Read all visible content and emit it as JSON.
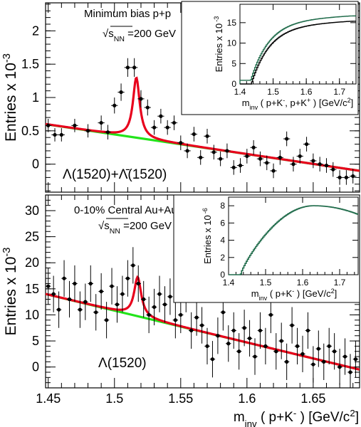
{
  "chart_data": [
    {
      "type": "scatter",
      "panel": "top",
      "annotations": [
        "Minimum bias p+p",
        "√s_NN =200 GeV"
      ],
      "label": "Λ(1520)+Λ̄(1520)",
      "ylabel": "Entries  x 10",
      "ylabel_exp": "-3",
      "xlim": [
        1.448,
        1.685
      ],
      "ylim": [
        -0.42,
        2.42
      ],
      "yticks": [
        0,
        0.5,
        1,
        1.5,
        2
      ],
      "ytick_labels": [
        "0",
        "0.5",
        "1",
        "1.5",
        "2"
      ],
      "points": {
        "x": [
          1.45,
          1.455,
          1.46,
          1.47,
          1.48,
          1.49,
          1.495,
          1.5,
          1.505,
          1.51,
          1.515,
          1.52,
          1.525,
          1.53,
          1.535,
          1.54,
          1.545,
          1.55,
          1.555,
          1.56,
          1.565,
          1.57,
          1.575,
          1.58,
          1.585,
          1.59,
          1.595,
          1.6,
          1.605,
          1.61,
          1.615,
          1.62,
          1.625,
          1.63,
          1.635,
          1.64,
          1.645,
          1.65,
          1.655,
          1.66,
          1.665,
          1.67,
          1.675,
          1.68
        ],
        "y": [
          0.58,
          0.44,
          0.44,
          0.58,
          0.5,
          0.62,
          0.48,
          0.88,
          1.08,
          1.45,
          1.45,
          0.98,
          0.85,
          0.55,
          0.72,
          0.55,
          0.62,
          0.32,
          0.2,
          0.45,
          0.1,
          0.42,
          0.18,
          0.08,
          0.2,
          -0.05,
          -0.02,
          0.12,
          0.25,
          0.08,
          0.02,
          -0.1,
          0.1,
          0.38,
          0.0,
          0.12,
          0.3,
          0.05,
          0.0,
          -0.02,
          -0.08,
          -0.2,
          -0.2,
          -0.18
        ],
        "err": [
          0.1,
          0.1,
          0.1,
          0.1,
          0.1,
          0.11,
          0.11,
          0.12,
          0.13,
          0.14,
          0.14,
          0.13,
          0.12,
          0.11,
          0.11,
          0.11,
          0.11,
          0.11,
          0.11,
          0.11,
          0.11,
          0.11,
          0.11,
          0.11,
          0.11,
          0.11,
          0.11,
          0.11,
          0.11,
          0.11,
          0.11,
          0.11,
          0.11,
          0.11,
          0.11,
          0.11,
          0.11,
          0.11,
          0.11,
          0.11,
          0.11,
          0.11,
          0.11,
          0.11
        ]
      },
      "fit": {
        "mass": 1.5165,
        "width": 0.0062,
        "amplitude": 0.9,
        "background_at_xmin": 0.6,
        "background_at_xmax": -0.1
      },
      "background_line": {
        "x": [
          1.448,
          1.685
        ],
        "y": [
          0.6,
          -0.1
        ]
      },
      "colors": {
        "fit": "#e8001c",
        "background": "#22e41a",
        "points": "#000000"
      },
      "inset": {
        "type": "line",
        "ylabel": "Entries  x 10",
        "ylabel_exp": "-3",
        "xlabel": "m_inv ( p+K⁻,  p+K⁺ )  [GeV/c²]",
        "xlabel_parts": [
          "m",
          "inv",
          " ( p+K",
          "-",
          ",  p+K",
          "+",
          " )  [GeV/c",
          "2",
          "]"
        ],
        "xlim": [
          1.4,
          1.75
        ],
        "ylim": [
          0,
          19.5
        ],
        "xticks": [
          1.4,
          1.5,
          1.6,
          1.7
        ],
        "xtick_labels": [
          "1.4",
          "1.5",
          "1.6",
          "1.7"
        ],
        "yticks": [
          0,
          5,
          10,
          15
        ],
        "ytick_labels": [
          "0",
          "5",
          "10",
          "15"
        ],
        "threshold": 1.433,
        "plateau": 15.8,
        "colors": {
          "line": "#000000",
          "line2": "#1f6b4a"
        }
      }
    },
    {
      "type": "scatter",
      "panel": "bottom",
      "annotations": [
        "0-10% Central Au+Au",
        "√s_NN =200 GeV"
      ],
      "label": "Λ(1520)",
      "ylabel": "Entries  x 10",
      "ylabel_exp": "-3",
      "xlabel_parts": [
        "m",
        "inv",
        " ( p+K",
        "-",
        " )  [GeV/c",
        "2",
        "]"
      ],
      "xlim": [
        1.448,
        1.685
      ],
      "ylim": [
        -4,
        33
      ],
      "xticks": [
        1.45,
        1.5,
        1.55,
        1.6,
        1.65
      ],
      "xtick_labels": [
        "1.45",
        "1.5",
        "1.55",
        "1.6",
        "1.65"
      ],
      "yticks": [
        0,
        5,
        10,
        15,
        20,
        25,
        30
      ],
      "ytick_labels": [
        "0",
        "5",
        "10",
        "15",
        "20",
        "25",
        "30"
      ],
      "points": {
        "x": [
          1.45,
          1.454,
          1.458,
          1.462,
          1.466,
          1.47,
          1.474,
          1.478,
          1.482,
          1.486,
          1.49,
          1.494,
          1.498,
          1.502,
          1.506,
          1.51,
          1.514,
          1.518,
          1.522,
          1.526,
          1.53,
          1.534,
          1.538,
          1.542,
          1.546,
          1.55,
          1.554,
          1.558,
          1.562,
          1.566,
          1.57,
          1.574,
          1.578,
          1.582,
          1.586,
          1.59,
          1.594,
          1.598,
          1.602,
          1.606,
          1.61,
          1.614,
          1.618,
          1.622,
          1.626,
          1.63,
          1.634,
          1.638,
          1.642,
          1.646,
          1.65,
          1.654,
          1.658,
          1.662,
          1.666,
          1.67,
          1.674,
          1.678,
          1.682
        ],
        "y": [
          15.5,
          14.0,
          11.0,
          17.0,
          13.0,
          16.0,
          11.0,
          12.5,
          16.0,
          10.5,
          14.5,
          9.0,
          15.5,
          12.0,
          14.0,
          17.0,
          19.5,
          16.0,
          13.0,
          10.0,
          11.5,
          14.0,
          12.0,
          13.5,
          9.0,
          10.0,
          14.0,
          7.0,
          9.5,
          8.0,
          4.0,
          1.5,
          6.0,
          10.5,
          4.5,
          7.0,
          3.0,
          7.5,
          5.5,
          2.0,
          7.0,
          4.0,
          10.0,
          3.0,
          5.0,
          1.0,
          8.0,
          4.0,
          2.5,
          7.0,
          0.5,
          3.5,
          1.0,
          4.0,
          3.0,
          0.0,
          2.0,
          -1.0,
          1.5
        ],
        "err": [
          3.5,
          3.5,
          3.5,
          3.5,
          3.5,
          3.5,
          3.5,
          3.5,
          3.5,
          3.5,
          3.5,
          3.5,
          3.5,
          3.5,
          3.5,
          3.5,
          3.5,
          3.5,
          3.5,
          3.5,
          3.5,
          3.5,
          3.5,
          3.5,
          3.5,
          3.5,
          3.5,
          3.5,
          3.5,
          3.5,
          3.5,
          3.5,
          3.5,
          3.5,
          3.5,
          3.5,
          3.5,
          3.5,
          3.5,
          3.5,
          3.5,
          3.5,
          3.5,
          3.5,
          3.5,
          3.5,
          3.5,
          3.5,
          3.5,
          3.5,
          3.5,
          3.5,
          3.5,
          3.5,
          3.5,
          3.5,
          3.5,
          3.5,
          3.5
        ]
      },
      "fit": {
        "mass": 1.5175,
        "width": 0.0065,
        "amplitude": 7.5,
        "background_at_xmin": 14.0,
        "background_at_xmax": -0.5
      },
      "background_line": {
        "x": [
          1.448,
          1.685
        ],
        "y": [
          14.0,
          -0.5
        ]
      },
      "colors": {
        "fit": "#e8001c",
        "background": "#22e41a",
        "points": "#000000"
      },
      "inset": {
        "type": "line",
        "ylabel": "Entries x 10",
        "ylabel_exp": "-6",
        "xlabel": "m_inv ( p+K⁻ )  [GeV/c²]",
        "xlabel_parts": [
          "m",
          "inv",
          " ( p+K",
          "-",
          " )  [GeV/c",
          "2",
          "]"
        ],
        "xlim": [
          1.4,
          1.75
        ],
        "ylim": [
          0,
          9
        ],
        "xticks": [
          1.4,
          1.5,
          1.6,
          1.7
        ],
        "xtick_labels": [
          "1.4",
          "1.5",
          "1.6",
          "1.7"
        ],
        "yticks": [
          0,
          2,
          4,
          6,
          8
        ],
        "ytick_labels": [
          "0",
          "2",
          "4",
          "6",
          "8"
        ],
        "threshold": 1.433,
        "peak_x": 1.63,
        "peak_y": 8.0,
        "end_y": 7.0,
        "colors": {
          "line": "#1f6b4a"
        }
      }
    }
  ]
}
